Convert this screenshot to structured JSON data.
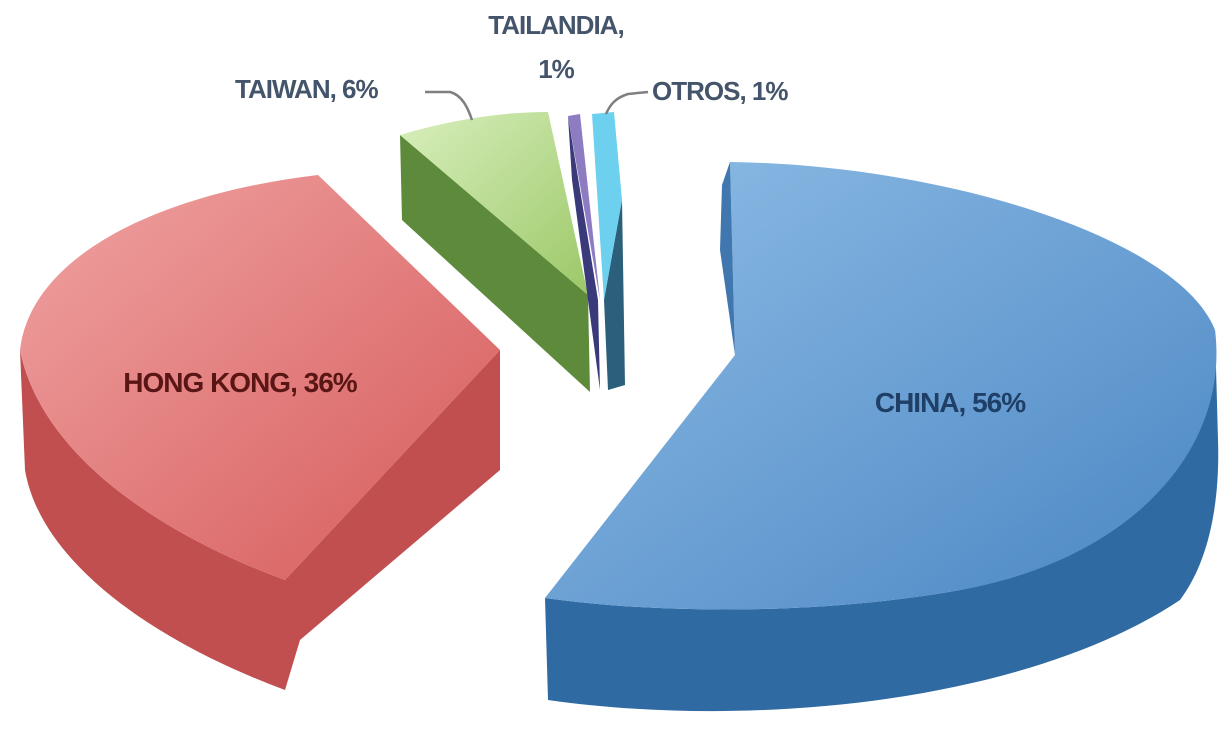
{
  "chart_data": {
    "type": "pie",
    "style": "3d-exploded",
    "slices": [
      {
        "category": "CHINA",
        "value": 56,
        "label": "CHINA, 56%",
        "color_top": "#5b9bd5",
        "color_side": "#2e5f8f"
      },
      {
        "category": "HONG KONG",
        "value": 36,
        "label": "HONG KONG, 36%",
        "color_top": "#e06666",
        "color_side": "#b84545"
      },
      {
        "category": "TAIWAN",
        "value": 6,
        "label": "TAIWAN, 6%",
        "color_top": "#b5d98a",
        "color_side": "#5f8a3a"
      },
      {
        "category": "TAILANDIA",
        "value": 1,
        "label_line1": "TAILANDIA,",
        "label_line2": "1%",
        "color_top": "#8e7cc3",
        "color_side": "#4e3f7a"
      },
      {
        "category": "OTROS",
        "value": 1,
        "label": "OTROS, 1%",
        "color_top": "#5bc8e8",
        "color_side": "#2b7f99"
      }
    ],
    "legend": "none",
    "data_labels": "category, percent"
  }
}
